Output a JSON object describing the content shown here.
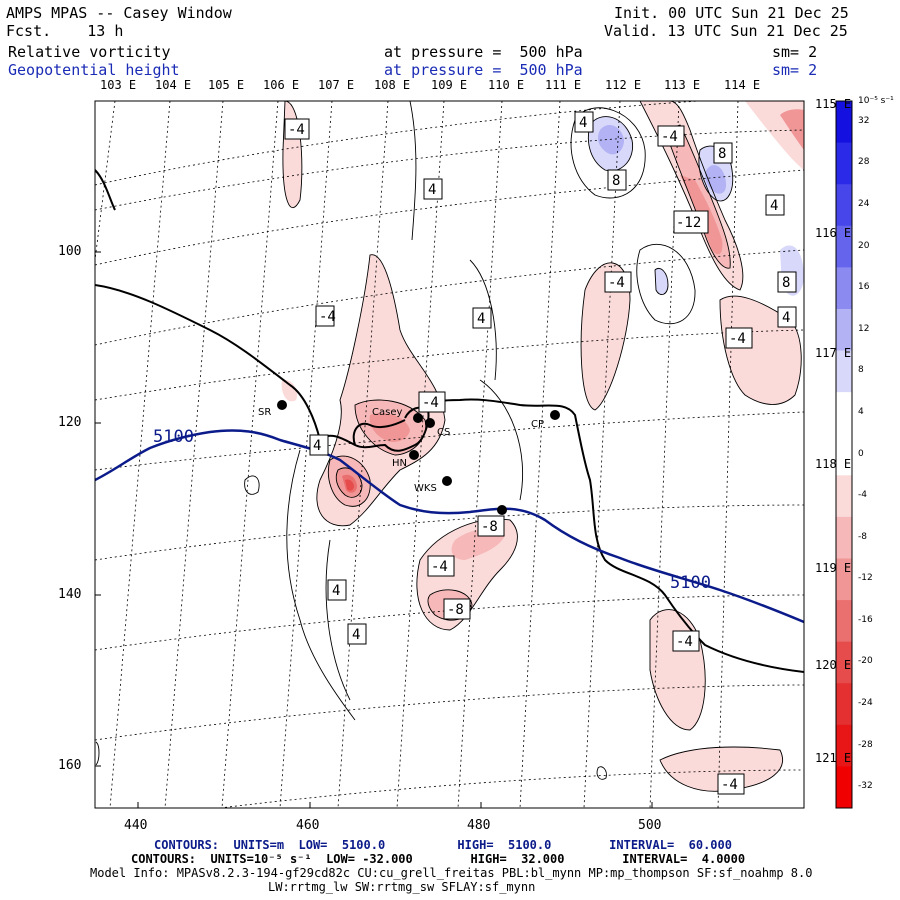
{
  "header": {
    "title": "AMPS MPAS -- Casey Window",
    "fcst": "Fcst.    13 h",
    "init": "Init. 00 UTC Sun 21 Dec 25",
    "valid": "Valid. 13 UTC Sun 21 Dec 25",
    "field1": {
      "name": "Relative vorticity",
      "level": "at pressure =  500 hPa",
      "sm": "sm= 2"
    },
    "field2": {
      "name": "Geopotential height",
      "level": "at pressure =  500 hPa",
      "sm": "sm= 2"
    }
  },
  "lon_labels_top": [
    "103 E",
    "104 E",
    "105 E",
    "106 E",
    "107 E",
    "108 E",
    "109 E",
    "110 E",
    "111 E",
    "112 E",
    "113 E",
    "114 E"
  ],
  "lon_labels_right": [
    "115 E",
    "116 E",
    "117 E",
    "118 E",
    "119 E",
    "120 E",
    "121 E"
  ],
  "x_ticks": [
    "440",
    "460",
    "480",
    "500"
  ],
  "y_ticks": [
    "100",
    "120",
    "140",
    "160"
  ],
  "colorbar": {
    "unit": "10⁻⁵ s⁻¹",
    "labels": [
      "32",
      "28",
      "24",
      "20",
      "16",
      "12",
      "8",
      "4",
      "0",
      "-4",
      "-8",
      "-12",
      "-16",
      "-20",
      "-24",
      "-28",
      "-32"
    ],
    "colors": [
      "#1410e0",
      "#2a2ae8",
      "#4646ea",
      "#6464ec",
      "#8a8af0",
      "#b2b2f4",
      "#d8d8fa",
      "#ffffff",
      "#ffffff",
      "#fbdada",
      "#f6b8b8",
      "#f09696",
      "#ea7070",
      "#e64c4c",
      "#e43030",
      "#e81616",
      "#f00000"
    ]
  },
  "height_contour_label": "5100",
  "box_labels": [
    "-4",
    "4",
    "4",
    "-4",
    "8",
    "8",
    "-12",
    "4",
    "-4",
    "8",
    "4",
    "-4",
    "4",
    "-4",
    "4",
    "-4",
    "-4",
    "-8",
    "-4",
    "-8",
    "4",
    "4",
    "-4",
    "-4"
  ],
  "stations": [
    "SR",
    "Casey",
    "CS",
    "HN",
    "WKS",
    "CP"
  ],
  "footer": {
    "line1_blue": "CONTOURS:  UNITS=m  LOW=  5100.0          HIGH=  5100.0        INTERVAL=  60.000",
    "line2": "CONTOURS:  UNITS=10⁻⁵ s⁻¹  LOW= -32.000        HIGH=  32.000        INTERVAL=  4.0000",
    "line3": "Model Info: MPASv8.2.3-194-gf29cd82c CU:cu_grell_freitas PBL:bl_mynn MP:mp_thompson SF:sf_noahmp 8.0",
    "line4": "LW:rrtmg_lw SW:rrtmg_sw SFLAY:sf_mynn"
  }
}
